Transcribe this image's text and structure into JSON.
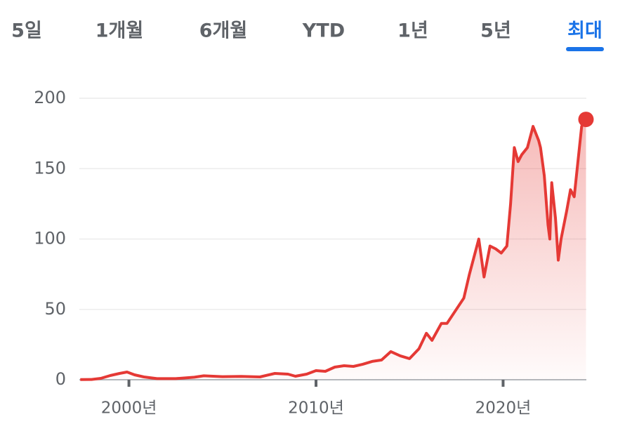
{
  "tabs": [
    "5일",
    "1개월",
    "6개월",
    "YTD",
    "1년",
    "5년",
    "최대"
  ],
  "selected_tab": 6,
  "chart_data": {
    "type": "area",
    "x": [
      1997.4,
      1998.0,
      1998.5,
      1999.0,
      1999.5,
      1999.9,
      2000.3,
      2000.8,
      2001.5,
      2002.5,
      2003.5,
      2004.0,
      2005.0,
      2006.0,
      2007.0,
      2007.8,
      2008.5,
      2008.9,
      2009.5,
      2010.0,
      2010.5,
      2011.0,
      2011.5,
      2012.0,
      2012.5,
      2013.0,
      2013.5,
      2014.0,
      2014.5,
      2015.0,
      2015.5,
      2015.9,
      2016.2,
      2016.7,
      2017.0,
      2017.5,
      2017.9,
      2018.2,
      2018.7,
      2018.98,
      2019.3,
      2019.6,
      2019.9,
      2020.2,
      2020.4,
      2020.6,
      2020.8,
      2021.0,
      2021.3,
      2021.6,
      2021.9,
      2022.0,
      2022.2,
      2022.4,
      2022.5,
      2022.6,
      2022.8,
      2022.95,
      2023.1,
      2023.4,
      2023.6,
      2023.8,
      2024.0,
      2024.2,
      2024.43
    ],
    "series": [
      {
        "color": "#e53935",
        "values": [
          0.1,
          0.2,
          1,
          3,
          4.5,
          5.5,
          3.5,
          2,
          0.8,
          0.8,
          1.8,
          2.8,
          2.2,
          2.4,
          2,
          4.5,
          4,
          2.5,
          4,
          6.5,
          6,
          9,
          10,
          9.5,
          11,
          13,
          14,
          20,
          17,
          15,
          22,
          33,
          28,
          40,
          40,
          50,
          58,
          75,
          100,
          73,
          95,
          93,
          90,
          95,
          125,
          165,
          155,
          160,
          165,
          180,
          170,
          165,
          145,
          110,
          100,
          140,
          115,
          85,
          100,
          120,
          135,
          130,
          155,
          180,
          185
        ]
      }
    ],
    "xlim": [
      1997.35,
      2024.45
    ],
    "xticks": [
      {
        "value": 2000,
        "label": "2000년"
      },
      {
        "value": 2010,
        "label": "2010년"
      },
      {
        "value": 2020,
        "label": "2020년"
      }
    ],
    "ylim": [
      0,
      200
    ],
    "yticks": [
      0,
      50,
      100,
      150,
      200
    ],
    "grid": true
  }
}
